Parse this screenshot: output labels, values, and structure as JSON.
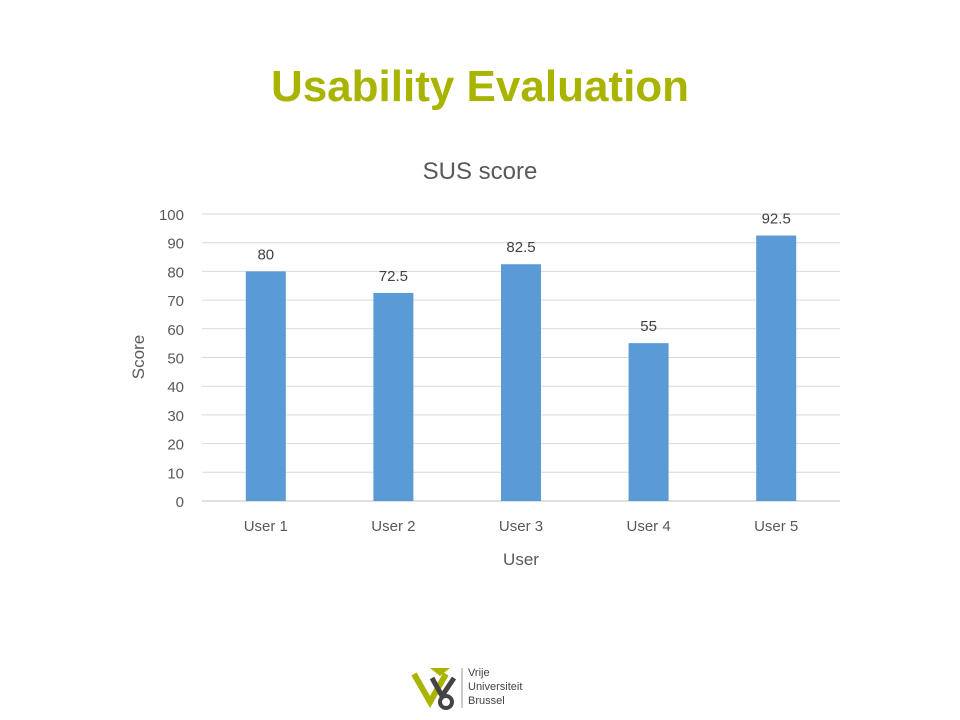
{
  "slide": {
    "title": "Usability Evaluation",
    "title_color": "#a8b400"
  },
  "chart_data": {
    "type": "bar",
    "title": "SUS score",
    "xlabel": "User",
    "ylabel": "Score",
    "categories": [
      "User 1",
      "User 2",
      "User 3",
      "User 4",
      "User 5"
    ],
    "values": [
      80,
      72.5,
      82.5,
      55,
      92.5
    ],
    "data_labels": [
      "80",
      "72.5",
      "82.5",
      "55",
      "92.5"
    ],
    "ylim": [
      0,
      100
    ],
    "yticks": [
      0,
      10,
      20,
      30,
      40,
      50,
      60,
      70,
      80,
      90,
      100
    ],
    "grid": true,
    "bar_color": "#5b9bd5",
    "legend": "none"
  },
  "logo": {
    "icon": "vub-logo-icon",
    "lines": [
      "Vrije",
      "Universiteit",
      "Brussel"
    ],
    "colors": {
      "olive": "#a8b400",
      "dark": "#444444"
    }
  }
}
